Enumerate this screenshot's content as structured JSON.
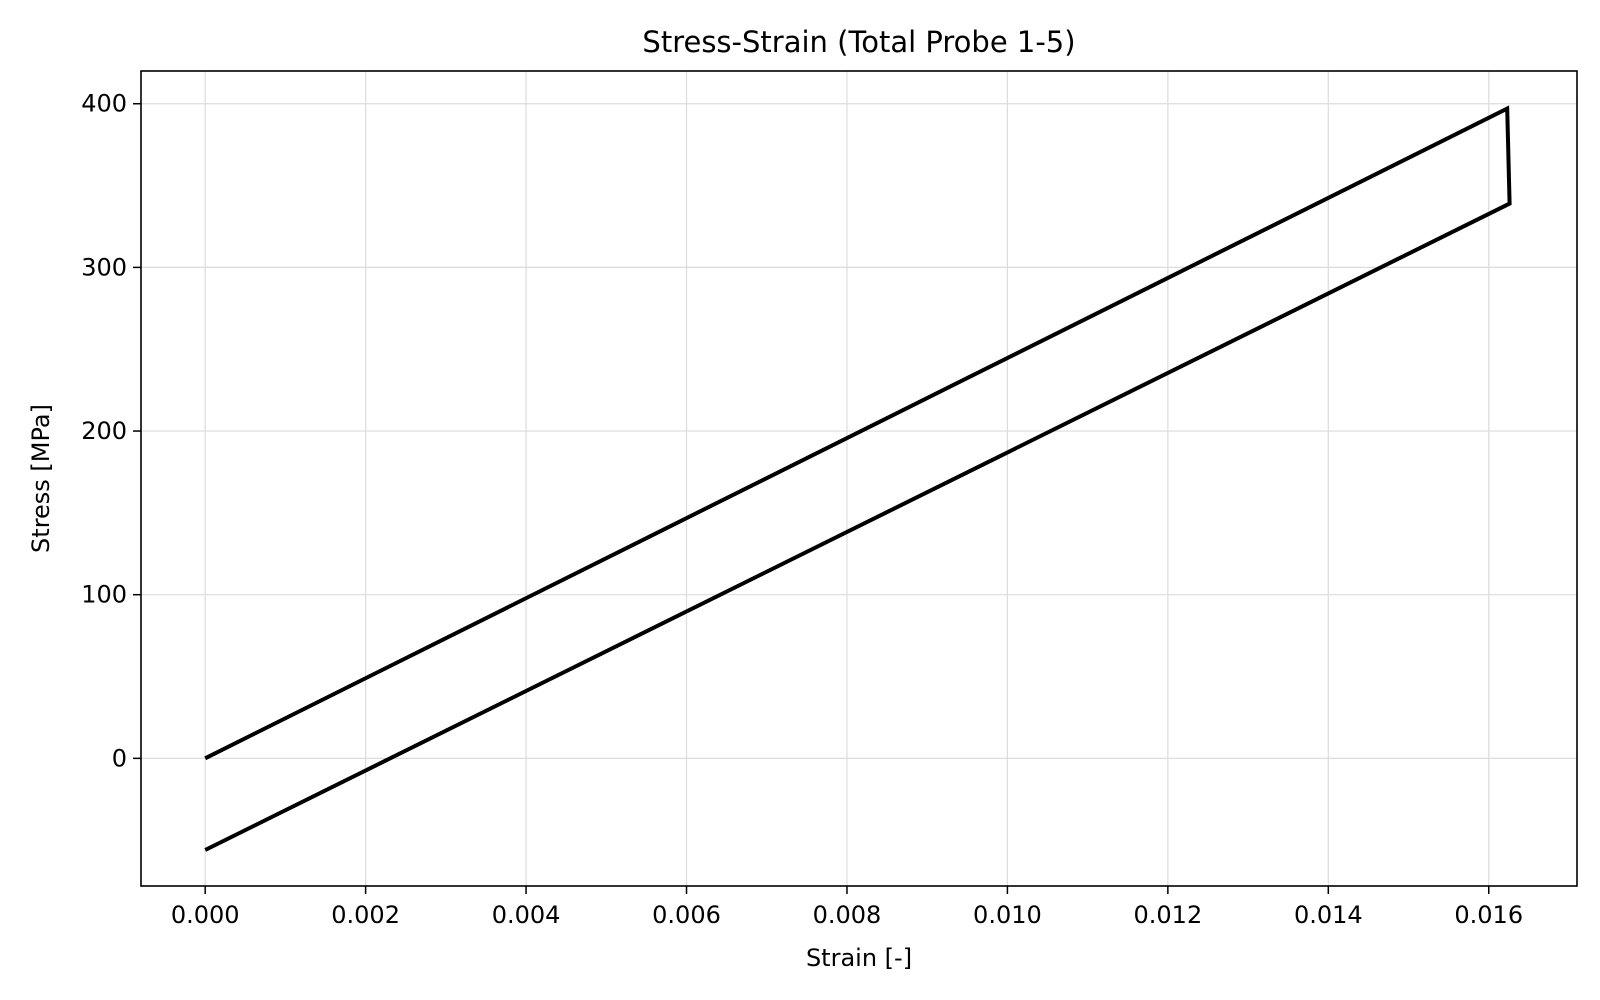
{
  "chart_data": {
    "type": "line",
    "title": "Stress-Strain (Total Probe 1-5)",
    "xlabel": "Strain [-]",
    "ylabel": "Stress [MPa]",
    "xlim": [
      -0.0008,
      0.0171
    ],
    "ylim": [
      -78,
      420
    ],
    "x_ticks": [
      0.0,
      0.002,
      0.004,
      0.006,
      0.008,
      0.01,
      0.012,
      0.014,
      0.016
    ],
    "x_tick_labels": [
      "0.000",
      "0.002",
      "0.004",
      "0.006",
      "0.008",
      "0.010",
      "0.012",
      "0.014",
      "0.016"
    ],
    "y_ticks": [
      0,
      100,
      200,
      300,
      400
    ],
    "y_tick_labels": [
      "0",
      "100",
      "200",
      "300",
      "400"
    ],
    "grid": true,
    "colors": {
      "line": "#000000",
      "grid": "#dcdcdc",
      "axes": "#000000"
    },
    "series": [
      {
        "x": [
          0.0,
          0.01623,
          0.01626,
          0.0
        ],
        "y": [
          0,
          397,
          339,
          -56
        ]
      }
    ]
  }
}
